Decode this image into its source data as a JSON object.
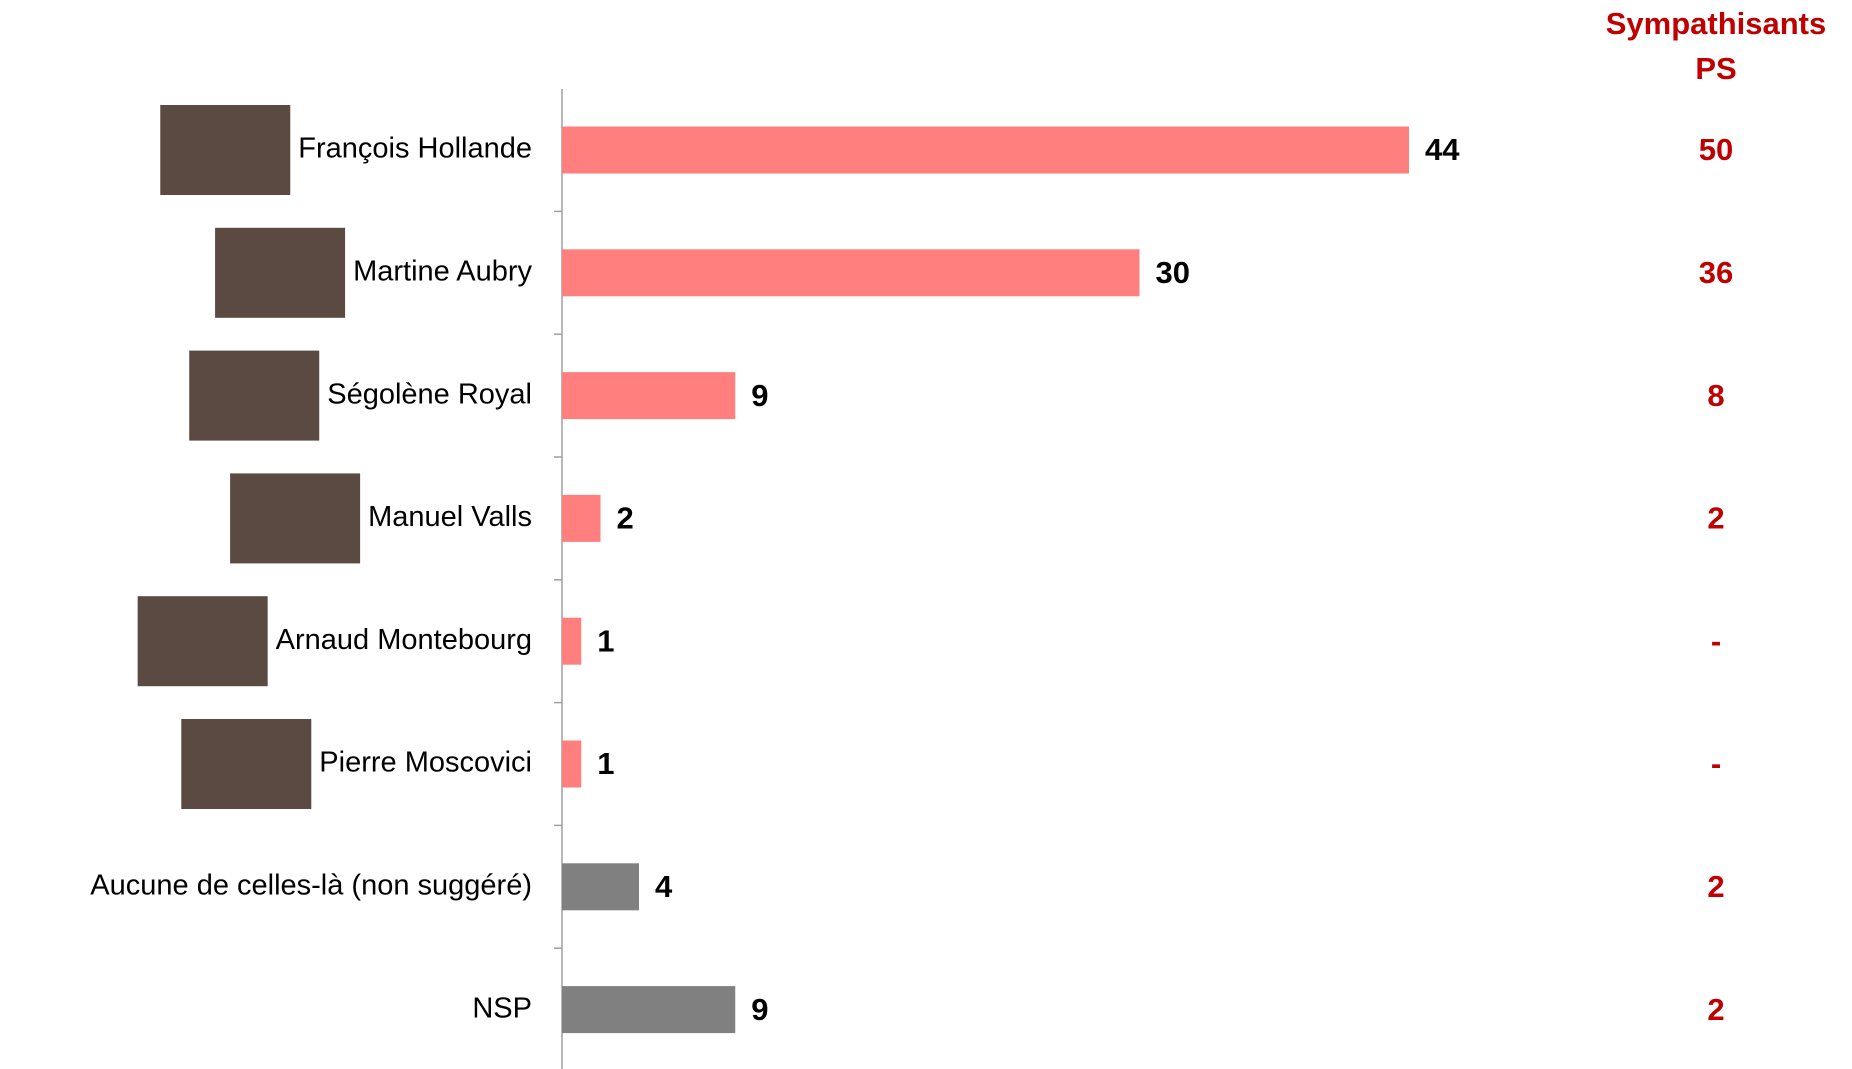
{
  "chart_data": {
    "type": "bar",
    "orientation": "horizontal",
    "categories": [
      "François Hollande",
      "Martine Aubry",
      "Ségolène Royal",
      "Manuel Valls",
      "Arnaud Montebourg",
      "Pierre Moscovici",
      "Aucune de celles-là (non suggéré)",
      "NSP"
    ],
    "values": [
      44,
      30,
      9,
      2,
      1,
      1,
      4,
      9
    ],
    "colors": [
      "#ff7f7f",
      "#ff7f7f",
      "#ff7f7f",
      "#ff7f7f",
      "#ff7f7f",
      "#ff7f7f",
      "#808080",
      "#808080"
    ],
    "xlim": [
      0,
      60
    ],
    "side_column": {
      "title_lines": [
        "Sympathisants",
        "PS"
      ],
      "color": "#c00000",
      "values": [
        50,
        36,
        8,
        2,
        null,
        null,
        2,
        2
      ],
      "value_labels": [
        "50",
        "36",
        "8",
        "2",
        "-",
        "-",
        "2",
        "2"
      ]
    }
  }
}
